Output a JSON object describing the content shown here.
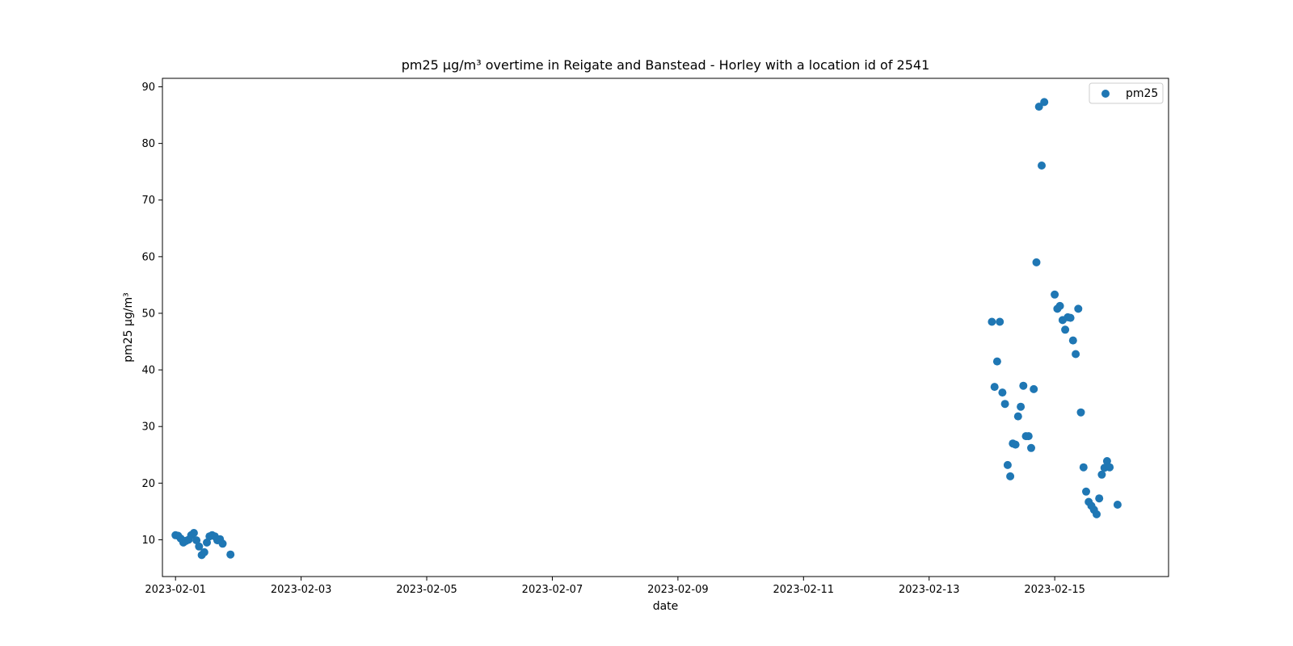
{
  "chart_data": {
    "type": "scatter",
    "title": "pm25 µg/m³ overtime in Reigate and Banstead - Horley with a location id of 2541",
    "xlabel": "date",
    "ylabel": "pm25 µg/m³",
    "x_tick_labels": [
      "2023-02-01",
      "2023-02-03",
      "2023-02-05",
      "2023-02-07",
      "2023-02-09",
      "2023-02-11",
      "2023-02-13",
      "2023-02-15"
    ],
    "y_tick_labels": [
      "10",
      "20",
      "30",
      "40",
      "50",
      "60",
      "70",
      "80",
      "90"
    ],
    "xlim": [
      "2023-01-31 19:00",
      "2023-02-16 19:30"
    ],
    "ylim": [
      3.5,
      91.5
    ],
    "grid": false,
    "legend": {
      "position": "top-right",
      "entries": [
        "pm25"
      ]
    },
    "colors": {
      "series": "#1f77b4"
    },
    "series": [
      {
        "name": "pm25",
        "points": [
          [
            "2023-02-01 00:00",
            10.8
          ],
          [
            "2023-02-01 01:00",
            10.7
          ],
          [
            "2023-02-01 02:00",
            10.2
          ],
          [
            "2023-02-01 03:00",
            9.5
          ],
          [
            "2023-02-01 04:00",
            9.8
          ],
          [
            "2023-02-01 05:00",
            10.0
          ],
          [
            "2023-02-01 06:00",
            10.8
          ],
          [
            "2023-02-01 07:00",
            11.2
          ],
          [
            "2023-02-01 08:00",
            9.9
          ],
          [
            "2023-02-01 09:00",
            8.8
          ],
          [
            "2023-02-01 10:00",
            7.3
          ],
          [
            "2023-02-01 11:00",
            7.8
          ],
          [
            "2023-02-01 12:00",
            9.5
          ],
          [
            "2023-02-01 13:00",
            10.6
          ],
          [
            "2023-02-01 14:00",
            10.8
          ],
          [
            "2023-02-01 15:00",
            10.6
          ],
          [
            "2023-02-01 16:00",
            9.9
          ],
          [
            "2023-02-01 17:00",
            10.1
          ],
          [
            "2023-02-01 18:00",
            9.3
          ],
          [
            "2023-02-01 21:00",
            7.4
          ],
          [
            "2023-02-14 00:00",
            48.5
          ],
          [
            "2023-02-14 01:00",
            37.0
          ],
          [
            "2023-02-14 02:00",
            41.5
          ],
          [
            "2023-02-14 03:00",
            48.5
          ],
          [
            "2023-02-14 04:00",
            36.0
          ],
          [
            "2023-02-14 05:00",
            34.0
          ],
          [
            "2023-02-14 06:00",
            23.2
          ],
          [
            "2023-02-14 07:00",
            21.2
          ],
          [
            "2023-02-14 08:00",
            27.0
          ],
          [
            "2023-02-14 09:00",
            26.8
          ],
          [
            "2023-02-14 10:00",
            31.8
          ],
          [
            "2023-02-14 11:00",
            33.5
          ],
          [
            "2023-02-14 12:00",
            37.2
          ],
          [
            "2023-02-14 13:00",
            28.3
          ],
          [
            "2023-02-14 14:00",
            28.3
          ],
          [
            "2023-02-14 15:00",
            26.2
          ],
          [
            "2023-02-14 16:00",
            36.6
          ],
          [
            "2023-02-14 17:00",
            59.0
          ],
          [
            "2023-02-14 18:00",
            86.5
          ],
          [
            "2023-02-14 19:00",
            76.1
          ],
          [
            "2023-02-14 20:00",
            87.3
          ],
          [
            "2023-02-15 00:00",
            53.3
          ],
          [
            "2023-02-15 01:00",
            50.8
          ],
          [
            "2023-02-15 02:00",
            51.3
          ],
          [
            "2023-02-15 03:00",
            48.8
          ],
          [
            "2023-02-15 04:00",
            47.1
          ],
          [
            "2023-02-15 05:00",
            49.3
          ],
          [
            "2023-02-15 06:00",
            49.2
          ],
          [
            "2023-02-15 07:00",
            45.2
          ],
          [
            "2023-02-15 08:00",
            42.8
          ],
          [
            "2023-02-15 09:00",
            50.8
          ],
          [
            "2023-02-15 10:00",
            32.5
          ],
          [
            "2023-02-15 11:00",
            22.8
          ],
          [
            "2023-02-15 12:00",
            18.5
          ],
          [
            "2023-02-15 13:00",
            16.7
          ],
          [
            "2023-02-15 14:00",
            16.0
          ],
          [
            "2023-02-15 15:00",
            15.3
          ],
          [
            "2023-02-15 16:00",
            14.5
          ],
          [
            "2023-02-15 17:00",
            17.3
          ],
          [
            "2023-02-15 18:00",
            21.5
          ],
          [
            "2023-02-15 19:00",
            22.7
          ],
          [
            "2023-02-15 20:00",
            23.9
          ],
          [
            "2023-02-15 21:00",
            22.8
          ],
          [
            "2023-02-16 00:00",
            16.2
          ]
        ]
      }
    ]
  }
}
